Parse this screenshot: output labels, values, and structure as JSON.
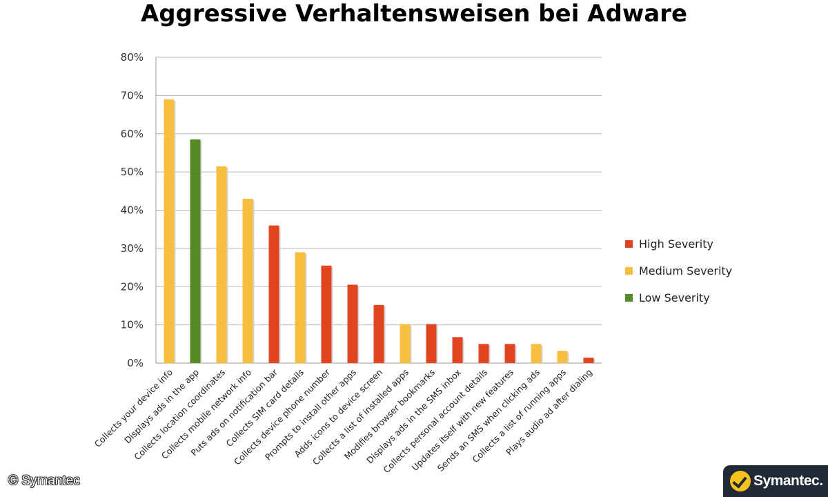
{
  "title": "Aggressive Verhaltensweisen bei Adware",
  "copyright": "© Symantec",
  "logo_text": "Symantec.",
  "colors": {
    "high": "#e2441f",
    "medium": "#f8bf3f",
    "low": "#558a27"
  },
  "chart_data": {
    "type": "bar",
    "title": "Aggressive Verhaltensweisen bei Adware",
    "xlabel": "",
    "ylabel": "",
    "ylim": [
      0,
      80
    ],
    "y_ticks": [
      "0%",
      "10%",
      "20%",
      "30%",
      "40%",
      "50%",
      "60%",
      "70%",
      "80%"
    ],
    "grid": true,
    "legend_position": "right",
    "legend": [
      {
        "key": "high",
        "label": "High Severity"
      },
      {
        "key": "medium",
        "label": "Medium Severity"
      },
      {
        "key": "low",
        "label": "Low Severity"
      }
    ],
    "categories": [
      "Collects your device info",
      "Displays ads in the app",
      "Collects location coordinates",
      "Collects mobile network info",
      "Puts ads on notification bar",
      "Collects SIM card details",
      "Collects device phone number",
      "Prompts to install other apps",
      "Adds icons to device screen",
      "Collects a list of installed apps",
      "Modifies browser bookmarks",
      "Displays ads in the SMS inbox",
      "Collects personal account details",
      "Updates itself with new features",
      "Sends an SMS when clicking ads",
      "Collects a list of running apps",
      "Plays audio ad after dialing"
    ],
    "values": [
      69,
      58.5,
      51.5,
      43,
      36,
      29,
      25.5,
      20.5,
      15.2,
      10.2,
      10.2,
      6.8,
      5,
      5,
      5,
      3.2,
      1.4
    ],
    "severity": [
      "medium",
      "low",
      "medium",
      "medium",
      "high",
      "medium",
      "high",
      "high",
      "high",
      "medium",
      "high",
      "high",
      "high",
      "high",
      "medium",
      "medium",
      "high"
    ]
  }
}
